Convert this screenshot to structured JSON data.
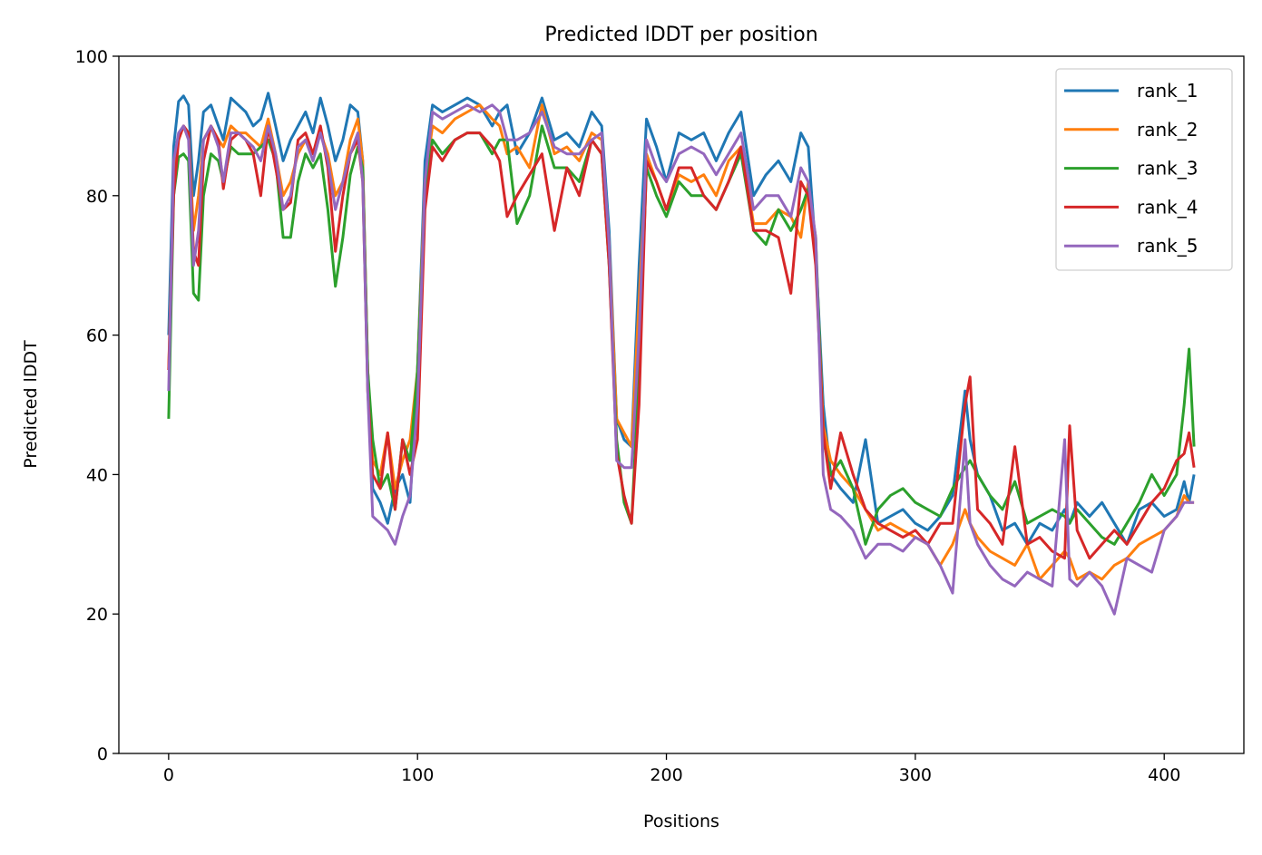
{
  "chart_data": {
    "type": "line",
    "title": "Predicted lDDT per position",
    "xlabel": "Positions",
    "ylabel": "Predicted lDDT",
    "xlim": [
      -20,
      432
    ],
    "ylim": [
      0,
      100
    ],
    "xticks": [
      0,
      100,
      200,
      300,
      400
    ],
    "yticks": [
      0,
      20,
      40,
      60,
      80,
      100
    ],
    "grid": false,
    "legend_position": "top-right",
    "x": [
      0,
      2,
      4,
      6,
      8,
      10,
      12,
      14,
      17,
      20,
      22,
      25,
      28,
      31,
      34,
      37,
      40,
      43,
      46,
      49,
      52,
      55,
      58,
      61,
      64,
      67,
      70,
      73,
      76,
      78,
      80,
      82,
      85,
      88,
      91,
      94,
      97,
      100,
      103,
      106,
      110,
      115,
      120,
      125,
      130,
      133,
      136,
      140,
      145,
      150,
      155,
      160,
      165,
      170,
      174,
      177,
      180,
      183,
      186,
      189,
      192,
      196,
      200,
      205,
      210,
      215,
      220,
      225,
      230,
      235,
      240,
      245,
      250,
      254,
      257,
      260,
      263,
      266,
      270,
      275,
      280,
      285,
      290,
      295,
      300,
      305,
      310,
      315,
      320,
      322,
      325,
      330,
      335,
      340,
      345,
      350,
      355,
      360,
      362,
      365,
      370,
      375,
      380,
      385,
      390,
      395,
      400,
      405,
      408,
      410,
      412
    ],
    "series": [
      {
        "name": "rank_1",
        "color": "#1f77b4",
        "values": [
          60,
          87,
          93.5,
          94.3,
          93,
          80,
          85,
          92,
          93,
          90,
          88,
          94,
          93,
          92,
          90,
          91,
          94.7,
          90,
          85,
          88,
          90,
          92,
          89,
          94,
          90,
          85,
          88,
          93,
          92,
          85,
          55,
          38,
          36,
          33,
          38,
          40,
          36,
          55,
          85,
          93,
          92,
          93,
          94,
          93,
          90,
          92,
          93,
          86,
          89,
          94,
          88,
          89,
          87,
          92,
          90,
          75,
          48,
          45,
          44,
          70,
          91,
          87,
          82,
          89,
          88,
          89,
          85,
          89,
          92,
          80,
          83,
          85,
          82,
          89,
          87,
          72,
          50,
          40,
          38,
          36,
          45,
          33,
          34,
          35,
          33,
          32,
          34,
          37,
          52,
          45,
          40,
          37,
          32,
          33,
          30,
          33,
          32,
          35,
          33,
          36,
          34,
          36,
          33,
          30,
          35,
          36,
          34,
          35,
          39,
          36,
          40
        ]
      },
      {
        "name": "rank_2",
        "color": "#ff7f0e",
        "values": [
          55,
          83,
          88,
          90,
          89,
          75,
          80,
          88,
          90,
          88,
          87,
          90,
          89,
          89,
          88,
          87,
          91,
          86,
          80,
          82,
          86,
          88,
          86,
          89,
          86,
          80,
          82,
          88,
          91,
          85,
          55,
          42,
          40,
          46,
          38,
          42,
          45,
          55,
          82,
          90,
          89,
          91,
          92,
          93,
          91,
          90,
          86,
          87,
          84,
          93,
          86,
          87,
          85,
          89,
          88,
          73,
          48,
          46,
          44,
          65,
          86,
          82,
          78,
          83,
          82,
          83,
          80,
          85,
          87,
          76,
          76,
          78,
          77,
          74,
          82,
          72,
          47,
          42,
          40,
          38,
          35,
          32,
          33,
          32,
          31,
          30,
          27,
          30,
          35,
          33,
          31,
          29,
          28,
          27,
          30,
          25,
          27,
          29,
          28,
          25,
          26,
          25,
          27,
          28,
          30,
          31,
          32,
          34,
          37,
          36,
          36
        ]
      },
      {
        "name": "rank_3",
        "color": "#2ca02c",
        "values": [
          48,
          80,
          85.5,
          86,
          85,
          66,
          65,
          80,
          86,
          85,
          82,
          87,
          86,
          86,
          86,
          87,
          88,
          85,
          74,
          74,
          82,
          86,
          84,
          86,
          78,
          67,
          74,
          83,
          87,
          84,
          55,
          45,
          38,
          40,
          35,
          45,
          42,
          55,
          80,
          88,
          86,
          88,
          89,
          89,
          86,
          88,
          88,
          76,
          80,
          90,
          84,
          84,
          82,
          88,
          86,
          70,
          45,
          36,
          33,
          55,
          84,
          80,
          77,
          82,
          80,
          80,
          78,
          82,
          86,
          75,
          73,
          78,
          75,
          78,
          81,
          74,
          45,
          40,
          42,
          38,
          30,
          35,
          37,
          38,
          36,
          35,
          34,
          38,
          41,
          42,
          40,
          37,
          35,
          39,
          33,
          34,
          35,
          34,
          33,
          35,
          33,
          31,
          30,
          33,
          36,
          40,
          37,
          40,
          50,
          58,
          44
        ]
      },
      {
        "name": "rank_4",
        "color": "#d62728",
        "values": [
          55,
          80,
          88,
          90,
          89,
          72,
          70,
          85,
          90,
          88,
          81,
          88,
          89,
          88,
          86,
          80,
          90,
          84,
          78,
          79,
          88,
          89,
          86,
          90,
          84,
          72,
          80,
          86,
          88,
          82,
          52,
          40,
          38,
          46,
          35,
          45,
          40,
          45,
          78,
          87,
          85,
          88,
          89,
          89,
          87,
          85,
          77,
          80,
          83,
          86,
          75,
          84,
          80,
          88,
          86,
          70,
          43,
          37,
          33,
          50,
          85,
          82,
          78,
          84,
          84,
          80,
          78,
          82,
          87,
          75,
          75,
          74,
          66,
          82,
          80,
          70,
          46,
          38,
          46,
          40,
          35,
          33,
          32,
          31,
          32,
          30,
          33,
          33,
          50,
          54,
          35,
          33,
          30,
          44,
          30,
          31,
          29,
          28,
          47,
          32,
          28,
          30,
          32,
          30,
          33,
          36,
          38,
          42,
          43,
          46,
          41
        ]
      },
      {
        "name": "rank_5",
        "color": "#9467bd",
        "values": [
          52,
          85,
          89,
          90,
          88,
          70,
          75,
          88,
          90,
          87,
          82,
          89,
          89,
          88,
          87,
          85,
          90,
          86,
          78,
          80,
          87,
          88,
          85,
          89,
          85,
          78,
          82,
          86,
          89,
          82,
          52,
          34,
          33,
          32,
          30,
          34,
          37,
          50,
          82,
          92,
          91,
          92,
          93,
          92,
          93,
          92,
          88,
          88,
          89,
          92,
          87,
          86,
          86,
          88,
          89,
          73,
          42,
          41,
          41,
          60,
          88,
          84,
          82,
          86,
          87,
          86,
          83,
          86,
          89,
          78,
          80,
          80,
          77,
          84,
          82,
          74,
          40,
          35,
          34,
          32,
          28,
          30,
          30,
          29,
          31,
          30,
          27,
          23,
          45,
          33,
          30,
          27,
          25,
          24,
          26,
          25,
          24,
          45,
          25,
          24,
          26,
          24,
          20,
          28,
          27,
          26,
          32,
          34,
          36,
          36,
          36
        ]
      }
    ]
  }
}
